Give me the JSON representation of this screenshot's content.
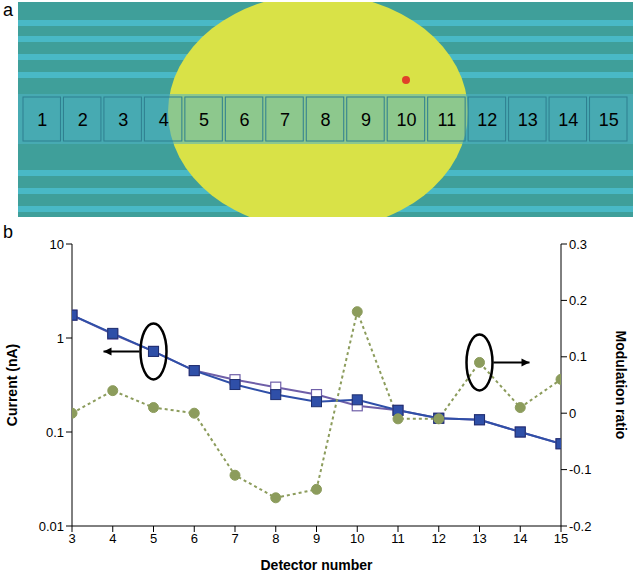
{
  "panel_a": {
    "label": "a",
    "detector_labels": [
      "1",
      "2",
      "3",
      "4",
      "5",
      "6",
      "7",
      "8",
      "9",
      "10",
      "11",
      "12",
      "13",
      "14",
      "15"
    ]
  },
  "chart_data": {
    "type": "line",
    "panel_label": "b",
    "x_label": "Detector number",
    "y_label": "Current (nA)",
    "y2_label": "Modulation ratio",
    "x": [
      3,
      4,
      5,
      6,
      7,
      8,
      9,
      10,
      11,
      12,
      13,
      14,
      15
    ],
    "xlim": [
      3,
      15
    ],
    "xticks": [
      3,
      4,
      5,
      6,
      7,
      8,
      9,
      10,
      11,
      12,
      13,
      14,
      15
    ],
    "log": "y",
    "ylim": [
      0.01,
      10
    ],
    "yticks": [
      0.01,
      0.1,
      1,
      10
    ],
    "y2lim": [
      -0.2,
      0.3
    ],
    "y2ticks": [
      -0.2,
      -0.1,
      0,
      0.1,
      0.2,
      0.3
    ],
    "grid": false,
    "series": [
      {
        "color": "#6f5fa8",
        "marker": "open_square",
        "line_style": "solid",
        "values": [
          1.75,
          1.1,
          0.72,
          0.45,
          0.36,
          0.3,
          0.25,
          0.19,
          0.17,
          0.14,
          0.135,
          0.1,
          0.075
        ]
      },
      {
        "color": "#2f4fa8",
        "marker": "square",
        "line_style": "solid",
        "values": [
          1.75,
          1.12,
          0.72,
          0.45,
          0.32,
          0.25,
          0.21,
          0.22,
          0.17,
          0.14,
          0.135,
          0.1,
          0.075
        ]
      },
      {
        "color": "#8c9c5c",
        "marker": "circle",
        "line_style": "dotted",
        "axis": "y2",
        "values": [
          0.0,
          0.04,
          0.01,
          0.0,
          -0.11,
          -0.15,
          -0.135,
          0.18,
          -0.01,
          -0.01,
          0.09,
          0.01,
          0.06
        ]
      }
    ]
  }
}
